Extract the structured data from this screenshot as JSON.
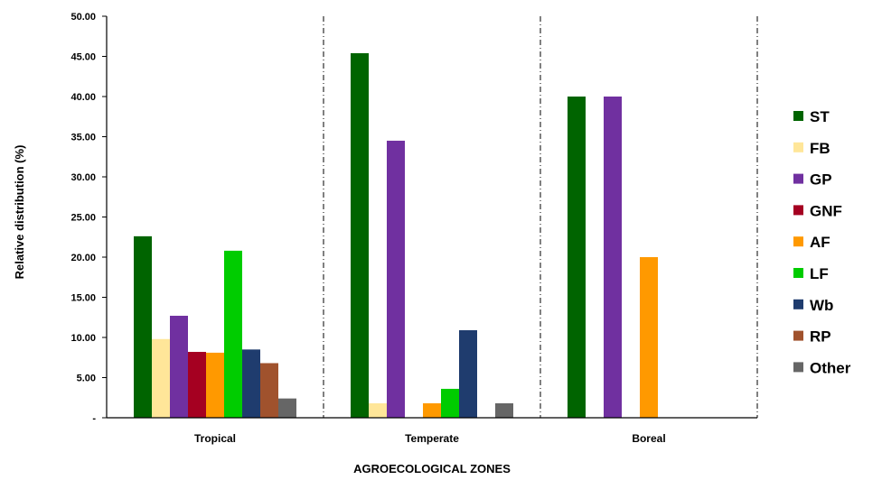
{
  "chart_data": {
    "type": "bar",
    "title": "",
    "xlabel": "AGROECOLOGICAL ZONES",
    "ylabel": "Relative distribution (%)",
    "ylim": [
      0,
      50
    ],
    "yticks": [
      0,
      5,
      10,
      15,
      20,
      25,
      30,
      35,
      40,
      45,
      50
    ],
    "ytick_labels": [
      "-",
      "5.00",
      "10.00",
      "15.00",
      "20.00",
      "25.00",
      "30.00",
      "35.00",
      "40.00",
      "45.00",
      "50.00"
    ],
    "categories": [
      "Tropical",
      "Temperate",
      "Boreal"
    ],
    "grid": false,
    "legend_position": "right",
    "series": [
      {
        "name": "ST",
        "color": "#006400",
        "values": [
          22.6,
          45.4,
          40.0
        ]
      },
      {
        "name": "FB",
        "color": "#FFE699",
        "values": [
          9.8,
          1.8,
          0
        ]
      },
      {
        "name": "GP",
        "color": "#7030A0",
        "values": [
          12.7,
          34.5,
          40.0
        ]
      },
      {
        "name": "GNF",
        "color": "#A50021",
        "values": [
          8.2,
          0,
          0
        ]
      },
      {
        "name": "AF",
        "color": "#FF9900",
        "values": [
          8.1,
          1.8,
          20.0
        ]
      },
      {
        "name": "LF",
        "color": "#00CC00",
        "values": [
          20.8,
          3.6,
          0
        ]
      },
      {
        "name": "Wb",
        "color": "#1F3C6E",
        "values": [
          8.5,
          10.9,
          0
        ]
      },
      {
        "name": "RP",
        "color": "#A0522D",
        "values": [
          6.8,
          0,
          0
        ]
      },
      {
        "name": "Other",
        "color": "#666666",
        "values": [
          2.4,
          1.8,
          0
        ]
      }
    ]
  }
}
